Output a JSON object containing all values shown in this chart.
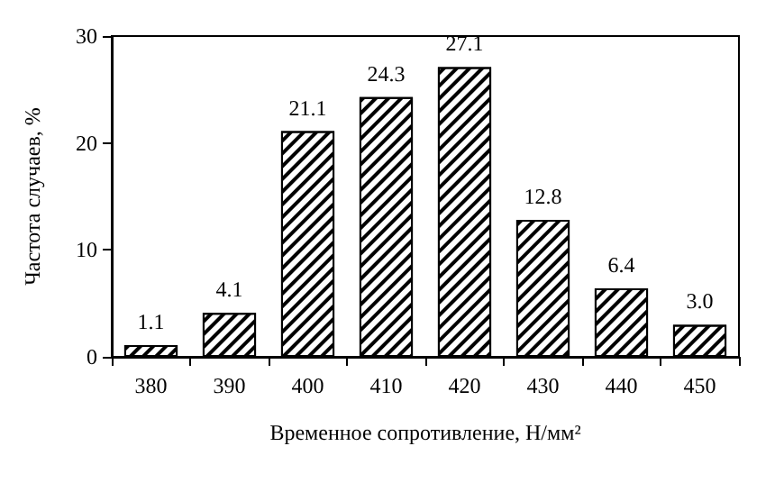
{
  "chart_data": {
    "type": "bar",
    "xlabel": "Временное сопротивление, Н/мм²",
    "ylabel": "Частота случаев, %",
    "categories": [
      "380",
      "390",
      "400",
      "410",
      "420",
      "430",
      "440",
      "450"
    ],
    "values": [
      1.1,
      4.1,
      21.1,
      24.3,
      27.1,
      12.8,
      6.4,
      3.0
    ],
    "value_labels": [
      "1.1",
      "4.1",
      "21.1",
      "24.3",
      "27.1",
      "12.8",
      "6.4",
      "3.0"
    ],
    "color": "#000000",
    "ylim": [
      0,
      30
    ],
    "yticks": [
      0,
      10,
      20,
      30
    ],
    "grid": false
  }
}
